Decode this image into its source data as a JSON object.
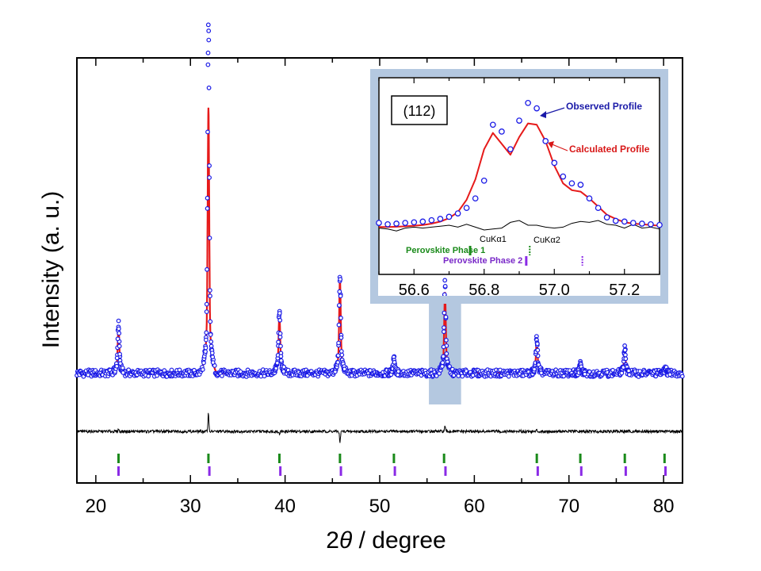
{
  "chart_data": [
    {
      "type": "line",
      "title": "",
      "xlabel_prefix": "2",
      "xlabel_symbol": "θ",
      "xlabel_suffix": " / degree",
      "ylabel": "Intensity (a. u.)",
      "xlim": [
        18,
        82
      ],
      "ylim": [
        0,
        1
      ],
      "xticks": [
        20,
        30,
        40,
        50,
        60,
        70,
        80
      ],
      "yticks": [],
      "grid": false,
      "background_level": 0.09,
      "peaks": [
        {
          "x": 22.4,
          "obs": 0.135,
          "calc": 0.13
        },
        {
          "x": 31.9,
          "obs": 1.0,
          "calc": 0.72
        },
        {
          "x": 39.4,
          "obs": 0.17,
          "calc": 0.16
        },
        {
          "x": 45.8,
          "obs": 0.26,
          "calc": 0.255
        },
        {
          "x": 51.5,
          "obs": 0.04,
          "calc": 0.035
        },
        {
          "x": 56.9,
          "obs": 0.25,
          "calc": 0.22
        },
        {
          "x": 66.6,
          "obs": 0.095,
          "calc": 0.09
        },
        {
          "x": 71.2,
          "obs": 0.025,
          "calc": 0.02
        },
        {
          "x": 75.9,
          "obs": 0.07,
          "calc": 0.065
        },
        {
          "x": 80.2,
          "obs": 0.015,
          "calc": 0.015
        }
      ],
      "difference_spikes": [
        {
          "x": 22.4,
          "value": 0.01
        },
        {
          "x": 31.9,
          "value": 0.08
        },
        {
          "x": 39.4,
          "value": -0.012
        },
        {
          "x": 45.8,
          "value": -0.05
        },
        {
          "x": 56.9,
          "value": 0.02
        },
        {
          "x": 66.6,
          "value": 0.005
        }
      ],
      "series": [
        {
          "name": "Observed Profile",
          "color": "#1a1ae6",
          "marker": "open-circle"
        },
        {
          "name": "Calculated Profile",
          "color": "#e61a1a",
          "marker": "line"
        },
        {
          "name": "",
          "role": "difference",
          "color": "#000000"
        }
      ],
      "reflections": {
        "phase1": {
          "name": "Perovskite Phase 1",
          "color": "#1a8a1a",
          "positions": [
            22.4,
            31.9,
            39.4,
            45.8,
            51.5,
            56.8,
            66.6,
            71.2,
            75.9,
            80.1
          ]
        },
        "phase2": {
          "name": "Perovskite Phase 2",
          "color": "#8a2ae6",
          "positions": [
            22.4,
            32.0,
            39.5,
            45.9,
            51.6,
            56.95,
            66.7,
            71.3,
            76.0,
            80.2
          ]
        }
      },
      "zoom_region": [
        55.2,
        58.6
      ]
    },
    {
      "type": "line",
      "role": "inset",
      "title": "",
      "label": "(112)",
      "xlim": [
        56.5,
        57.3
      ],
      "ylim": [
        0,
        1
      ],
      "xticks": [
        56.6,
        56.8,
        57.0,
        57.2
      ],
      "x": [
        56.5,
        56.525,
        56.55,
        56.575,
        56.6,
        56.625,
        56.65,
        56.675,
        56.7,
        56.725,
        56.75,
        56.775,
        56.8,
        56.825,
        56.85,
        56.875,
        56.9,
        56.925,
        56.95,
        56.975,
        57.0,
        57.025,
        57.05,
        57.075,
        57.1,
        57.125,
        57.15,
        57.175,
        57.2,
        57.225,
        57.25,
        57.275,
        57.3
      ],
      "observed": [
        0.04,
        0.03,
        0.035,
        0.04,
        0.045,
        0.05,
        0.06,
        0.07,
        0.085,
        0.11,
        0.15,
        0.22,
        0.35,
        0.76,
        0.71,
        0.58,
        0.79,
        0.92,
        0.88,
        0.64,
        0.48,
        0.38,
        0.33,
        0.32,
        0.22,
        0.15,
        0.08,
        0.055,
        0.05,
        0.04,
        0.035,
        0.03,
        0.025
      ],
      "calculated": [
        0.01,
        0.01,
        0.012,
        0.015,
        0.02,
        0.025,
        0.035,
        0.05,
        0.075,
        0.12,
        0.21,
        0.36,
        0.58,
        0.7,
        0.62,
        0.54,
        0.67,
        0.77,
        0.76,
        0.64,
        0.46,
        0.33,
        0.28,
        0.27,
        0.22,
        0.16,
        0.1,
        0.07,
        0.045,
        0.035,
        0.03,
        0.025,
        0.02
      ],
      "difference": [
        -0.13,
        -0.14,
        -0.16,
        -0.13,
        -0.12,
        -0.13,
        -0.12,
        -0.11,
        -0.1,
        -0.12,
        -0.09,
        -0.12,
        -0.15,
        -0.14,
        -0.13,
        -0.07,
        -0.05,
        -0.1,
        -0.1,
        -0.12,
        -0.13,
        -0.12,
        -0.08,
        -0.06,
        -0.07,
        -0.05,
        -0.09,
        -0.1,
        -0.13,
        -0.09,
        -0.13,
        -0.12,
        -0.14
      ],
      "annotations": {
        "observed": "Observed Profile",
        "calculated": "Calculated Profile",
        "cuka1": "CuKα1",
        "cuka2": "CuKα2",
        "phase1": "Perovskite Phase 1",
        "phase2": "Perovskite Phase 2"
      },
      "reflections": {
        "phase1_ka1": 56.76,
        "phase1_ka2": 56.93,
        "phase2_ka1": 56.92,
        "phase2_ka2": 57.08
      }
    }
  ]
}
